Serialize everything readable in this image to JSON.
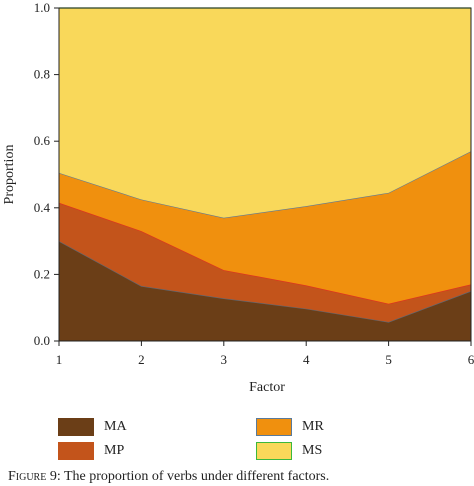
{
  "chart_data": {
    "type": "area",
    "stacked": true,
    "x": [
      1,
      2,
      3,
      4,
      5,
      6
    ],
    "xlabel": "Factor",
    "ylabel": "Proportion",
    "xlim": [
      1,
      6
    ],
    "ylim": [
      0,
      1.0
    ],
    "x_ticks": [
      "1",
      "2",
      "3",
      "4",
      "5",
      "6"
    ],
    "y_ticks": [
      "0.0",
      "0.2",
      "0.4",
      "0.6",
      "0.8",
      "1.0"
    ],
    "legend_position": "bottom",
    "series": [
      {
        "name": "MA",
        "color": "#6b3e17",
        "line_color": "#5a6a7a",
        "values": [
          0.3,
          0.165,
          0.128,
          0.097,
          0.057,
          0.15
        ]
      },
      {
        "name": "MP",
        "color": "#c3541b",
        "line_color": "#e03020",
        "values": [
          0.115,
          0.165,
          0.085,
          0.07,
          0.055,
          0.02
        ]
      },
      {
        "name": "MR",
        "color": "#f0900e",
        "line_color": "#5a7a9a",
        "values": [
          0.09,
          0.095,
          0.157,
          0.238,
          0.333,
          0.4
        ]
      },
      {
        "name": "MS",
        "color": "#f9d85a",
        "line_color": "#3cb83c",
        "values": [
          0.495,
          0.575,
          0.63,
          0.595,
          0.555,
          0.43
        ]
      }
    ]
  },
  "caption": {
    "prefix": "Figure 9:",
    "text": " The proportion of verbs under different factors."
  }
}
